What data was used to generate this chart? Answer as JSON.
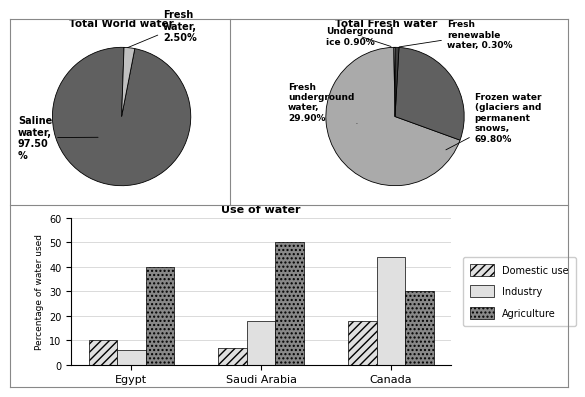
{
  "pie1_title": "Total World water",
  "pie1_sizes": [
    97.5,
    2.5
  ],
  "pie1_labels": [
    "Saline\nwater,\n97.50\n%",
    "Fresh\nwater,\n2.50%"
  ],
  "pie1_colors": [
    "#606060",
    "#c0c0c0"
  ],
  "pie1_startangle": 88,
  "pie2_title": "Total Fresh water",
  "pie2_sizes": [
    69.8,
    29.9,
    0.9,
    0.3
  ],
  "pie2_labels": [
    "Frozen water\n(glaciers and\npermanent\nsnows,\n69.80%",
    "Fresh\nunderground\nwater,\n29.90%",
    "Underground\nice 0.90%",
    "Fresh\nrenewable\nwater, 0.30%"
  ],
  "pie2_colors": [
    "#aaaaaa",
    "#606060",
    "#404040",
    "#d0d0d0"
  ],
  "pie2_startangle": 91,
  "bar_title": "Use of water",
  "bar_categories": [
    "Egypt",
    "Saudi Arabia",
    "Canada"
  ],
  "bar_domestic": [
    10,
    7,
    18
  ],
  "bar_industry": [
    6,
    18,
    44
  ],
  "bar_agriculture": [
    40,
    50,
    30
  ],
  "ylabel": "Percentage of water used",
  "ylim": [
    0,
    60
  ],
  "yticks": [
    0,
    10,
    20,
    30,
    40,
    50,
    60
  ],
  "bg_color": "#ffffff"
}
